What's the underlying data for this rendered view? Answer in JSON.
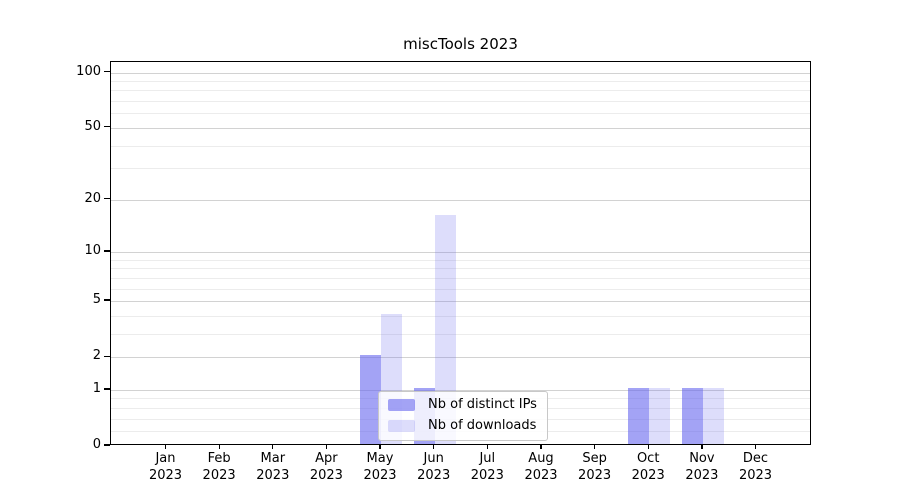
{
  "figure": {
    "background": "#ffffff"
  },
  "chart_data": {
    "type": "bar",
    "title": "miscTools 2023",
    "categories": [
      "Jan",
      "Feb",
      "Mar",
      "Apr",
      "May",
      "Jun",
      "Jul",
      "Aug",
      "Sep",
      "Oct",
      "Nov",
      "Dec"
    ],
    "year_label": "2023",
    "series": [
      {
        "name": "Nb of distinct IPs",
        "color": "rgba(102,102,238,0.60)",
        "values": [
          0,
          0,
          0,
          0,
          2,
          1,
          0,
          0,
          0,
          1,
          1,
          0
        ]
      },
      {
        "name": "Nb of downloads",
        "color": "rgba(102,102,238,0.22)",
        "values": [
          0,
          0,
          0,
          0,
          4,
          16,
          0,
          0,
          0,
          1,
          1,
          0
        ]
      }
    ],
    "yscale": "log1p",
    "ylim": [
      0,
      114
    ],
    "yticks": [
      0,
      1,
      2,
      5,
      10,
      20,
      50,
      100
    ],
    "minor_gridlines": [
      0.2,
      0.4,
      0.6,
      0.8,
      3,
      4,
      6,
      7,
      8,
      9,
      30,
      40,
      60,
      70,
      80,
      90
    ],
    "grid": true,
    "legend_position": "lower center",
    "axis_color": "#000000",
    "major_grid_color": "#d2d2d2",
    "minor_grid_color": "#ececec"
  }
}
